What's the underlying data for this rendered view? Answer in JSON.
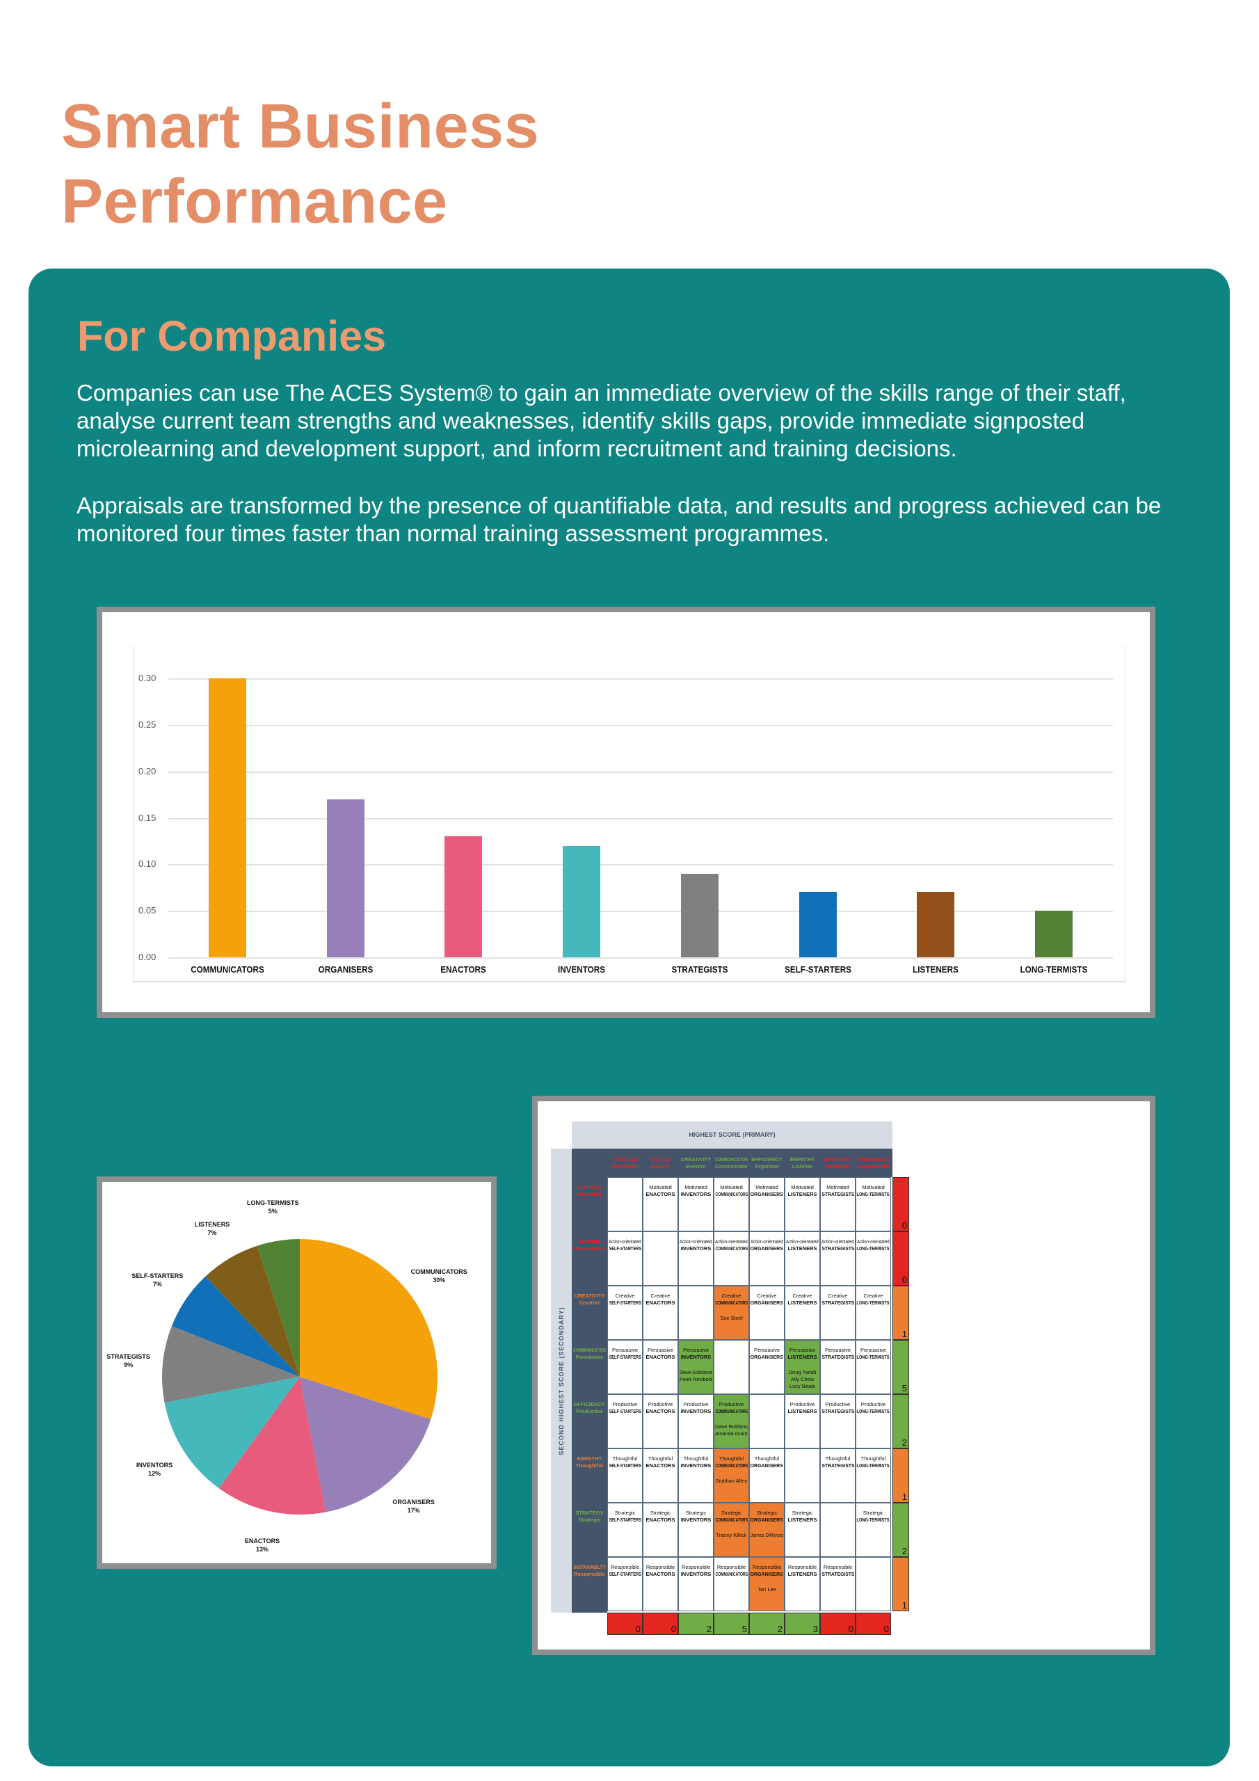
{
  "header": {
    "title_line1": "Smart Business",
    "title_line2": "Performance"
  },
  "section": {
    "title": "For Companies",
    "paragraph1": "Companies can use The ACES System® to gain an immediate overview of the skills range of their staff, analyse current team strengths and weaknesses, identify skills gaps, provide immediate signposted microlearning and development support, and inform recruitment and training decisions.",
    "paragraph2": "Appraisals are transformed by the presence of quantifiable data, and results and progress achieved can be monitored four times faster than normal training assessment programmes."
  },
  "colors": {
    "title": "#E38E66",
    "panel": "#0E8583",
    "red": "#E3261F",
    "green": "#70AD47",
    "orange": "#ED7D31",
    "matrix_dark": "#44546A",
    "matrix_light": "#D6DCE4"
  },
  "chart_data": [
    {
      "type": "bar",
      "categories": [
        "COMMUNICATORS",
        "ORGANISERS",
        "ENACTORS",
        "INVENTORS",
        "STRATEGISTS",
        "SELF-STARTERS",
        "LISTENERS",
        "LONG-TERMISTS"
      ],
      "values": [
        0.3,
        0.17,
        0.13,
        0.12,
        0.09,
        0.07,
        0.07,
        0.05
      ],
      "colors": [
        "#F5A10A",
        "#977FB8",
        "#E75B7C",
        "#45B8BB",
        "#808080",
        "#1270B8",
        "#93501A",
        "#548235"
      ],
      "ylim": [
        0,
        0.3
      ],
      "yticks": [
        "0.00",
        "0.05",
        "0.10",
        "0.15",
        "0.20",
        "0.25",
        "0.30"
      ],
      "grid": true,
      "legend": "none"
    },
    {
      "type": "pie",
      "categories": [
        "COMMUNICATORS",
        "ORGANISERS",
        "ENACTORS",
        "INVENTORS",
        "STRATEGISTS",
        "SELF-STARTERS",
        "LISTENERS",
        "LONG-TERMISTS"
      ],
      "values": [
        30,
        17,
        13,
        12,
        9,
        7,
        7,
        5
      ],
      "labels": [
        "30%",
        "17%",
        "13%",
        "12%",
        "9%",
        "7%",
        "7%",
        "5%"
      ],
      "colors": [
        "#F5A10A",
        "#977FB8",
        "#E75B7C",
        "#45B8BB",
        "#808080",
        "#1270B8",
        "#7F5E1A",
        "#548235"
      ]
    }
  ],
  "matrix": {
    "top_title": "HIGHEST SCORE (PRIMARY)",
    "side_title": "SECOND HIGHEST SCORE (SECONDARY)",
    "columns": [
      {
        "a": "ATTITUDE",
        "b": "Self-starter",
        "color": "red"
      },
      {
        "a": "ACTION",
        "b": "Enactor",
        "color": "red"
      },
      {
        "a": "CREATIVITY",
        "b": "Inventor",
        "color": "green"
      },
      {
        "a": "COMMUNICATION",
        "b": "Communicator",
        "color": "green"
      },
      {
        "a": "EFFICIENCY",
        "b": "Organiser",
        "color": "green"
      },
      {
        "a": "EMPATHY",
        "b": "Listener",
        "color": "green"
      },
      {
        "a": "STRATEGY",
        "b": "Strategist",
        "color": "red"
      },
      {
        "a": "SUSTAINABILITY",
        "b": "Long-Termist",
        "color": "red"
      }
    ],
    "types": [
      "SELF-STARTERS",
      "ENACTORS",
      "INVENTORS",
      "COMMUNICATORS",
      "ORGANISERS",
      "LISTENERS",
      "STRATEGISTS",
      "LONG-TERMISTS"
    ],
    "rows": [
      {
        "a": "ATTITUDE",
        "b": "Motivated",
        "adj": "Motivated",
        "color": "red",
        "count": "0",
        "count_color": "red",
        "hl": {}
      },
      {
        "a": "ACTION",
        "b": "Action-orientated",
        "adj": "Action-orientated",
        "color": "red",
        "count": "0",
        "count_color": "red",
        "hl": {}
      },
      {
        "a": "CREATIVITY",
        "b": "Creative",
        "adj": "Creative",
        "color": "orange",
        "count": "1",
        "count_color": "orange",
        "hl": {
          "3": {
            "fill": "orange",
            "names": [
              "Sue Steel"
            ]
          }
        }
      },
      {
        "a": "COMMUNICATION",
        "b": "Persuasive",
        "adj": "Persuasive",
        "color": "green",
        "count": "5",
        "count_color": "green",
        "hl": {
          "2": {
            "fill": "green",
            "names": [
              "Steve Goldstone",
              "Peter Newbold"
            ]
          },
          "5": {
            "fill": "green",
            "names": [
              "Doug Taralli",
              "Ally Chow",
              "Lucy Beale"
            ]
          }
        }
      },
      {
        "a": "EFFICIENCY",
        "b": "Productive",
        "adj": "Productive",
        "color": "green",
        "count": "2",
        "count_color": "green",
        "hl": {
          "3": {
            "fill": "green",
            "names": [
              "Dave Robbins",
              "Amanda Grant"
            ]
          }
        }
      },
      {
        "a": "EMPATHY",
        "b": "Thoughtful",
        "adj": "Thoughtful",
        "color": "orange",
        "count": "1",
        "count_color": "orange",
        "hl": {
          "3": {
            "fill": "orange",
            "names": [
              "Siobhan Allen"
            ]
          }
        }
      },
      {
        "a": "STRATEGY",
        "b": "Strategic",
        "adj": "Strategic",
        "color": "green",
        "count": "2",
        "count_color": "green",
        "hl": {
          "3": {
            "fill": "orange",
            "names": [
              "Tracey Killick"
            ]
          },
          "4": {
            "fill": "orange",
            "names": [
              "James DiRenzo"
            ]
          }
        }
      },
      {
        "a": "SUSTAINABILITY",
        "b": "Responsible",
        "adj": "Responsible",
        "color": "orange",
        "count": "1",
        "count_color": "orange",
        "hl": {
          "4": {
            "fill": "orange",
            "names": [
              "Tan Lee"
            ]
          }
        }
      }
    ],
    "column_counts": [
      {
        "v": "0",
        "color": "red"
      },
      {
        "v": "0",
        "color": "red"
      },
      {
        "v": "2",
        "color": "green"
      },
      {
        "v": "5",
        "color": "green"
      },
      {
        "v": "2",
        "color": "green"
      },
      {
        "v": "3",
        "color": "green"
      },
      {
        "v": "0",
        "color": "red"
      },
      {
        "v": "0",
        "color": "red"
      }
    ]
  }
}
